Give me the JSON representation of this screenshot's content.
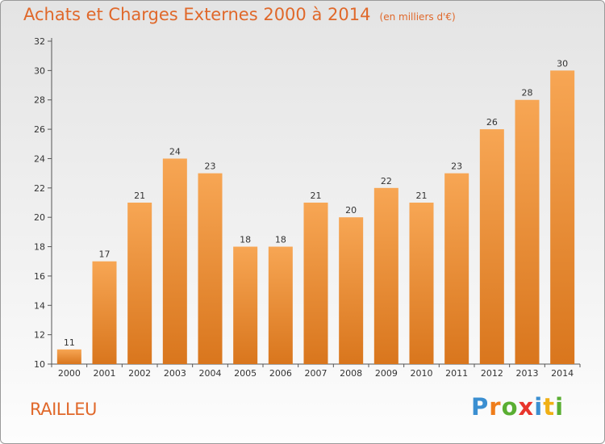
{
  "title": "Achats et Charges Externes 2000 à 2014",
  "unit_label": "(en milliers d'€)",
  "place": "RAILLEU",
  "logo": {
    "letters": [
      "P",
      "r",
      "o",
      "x",
      "i",
      "t",
      "i"
    ],
    "colors": [
      "#3b8fd1",
      "#ef7d1a",
      "#5aae32",
      "#e8352c",
      "#3b8fd1",
      "#f0b015",
      "#5aae32"
    ]
  },
  "colors": {
    "bar_top": "#f7a654",
    "bar_bottom": "#d9761d",
    "title": "#e0682a"
  },
  "chart_data": {
    "type": "bar",
    "categories": [
      "2000",
      "2001",
      "2002",
      "2003",
      "2004",
      "2005",
      "2006",
      "2007",
      "2008",
      "2009",
      "2010",
      "2011",
      "2012",
      "2013",
      "2014"
    ],
    "values": [
      11,
      17,
      21,
      24,
      23,
      18,
      18,
      21,
      20,
      22,
      21,
      23,
      26,
      28,
      30
    ],
    "ylim": [
      10,
      32
    ],
    "yticks": [
      10,
      12,
      14,
      16,
      18,
      20,
      22,
      24,
      26,
      28,
      30,
      32
    ],
    "grid": false,
    "data_labels": true
  }
}
